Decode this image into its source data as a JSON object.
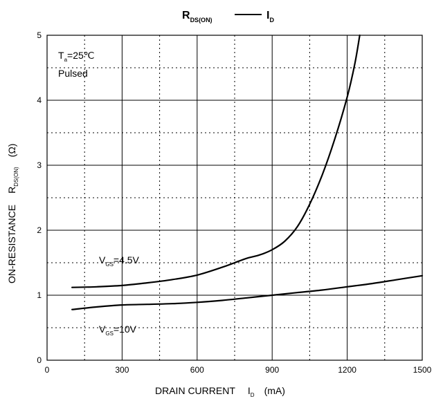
{
  "chart_data": {
    "type": "line",
    "title_main": "R",
    "title_main_sub": "DS(ON)",
    "title_second": "I",
    "title_second_sub": "D",
    "xlabel_main": "DRAIN CURRENT",
    "xlabel_symbol": "I",
    "xlabel_symbol_sub": "D",
    "xlabel_unit": "(mA)",
    "ylabel_main": "ON-RESISTANCE",
    "ylabel_symbol": "R",
    "ylabel_symbol_sub": "DS(ON)",
    "ylabel_unit": "(Ω)",
    "xlim": [
      0,
      1500
    ],
    "ylim": [
      0,
      5
    ],
    "x_ticks": [
      "0",
      "300",
      "600",
      "900",
      "1200",
      "1500"
    ],
    "y_ticks": [
      "0",
      "1",
      "2",
      "3",
      "4",
      "5"
    ],
    "grid": true,
    "condition_ta": "T",
    "condition_ta_sub": "a",
    "condition_ta_value": "=25℃",
    "condition_mode": "Pulsed",
    "series": [
      {
        "name_main": "V",
        "name_sub": "GS",
        "name_value": "=4.5V",
        "x": [
          100,
          200,
          300,
          400,
          500,
          600,
          700,
          750,
          800,
          850,
          900,
          950,
          1000,
          1050,
          1100,
          1150,
          1200,
          1230,
          1250
        ],
        "y": [
          1.12,
          1.13,
          1.15,
          1.19,
          1.24,
          1.31,
          1.43,
          1.5,
          1.57,
          1.62,
          1.7,
          1.83,
          2.05,
          2.4,
          2.85,
          3.4,
          4.05,
          4.55,
          5.0
        ]
      },
      {
        "name_main": "V",
        "name_sub": "GS",
        "name_value": "=10V",
        "x": [
          100,
          200,
          300,
          400,
          500,
          600,
          700,
          800,
          900,
          1000,
          1100,
          1200,
          1300,
          1400,
          1500
        ],
        "y": [
          0.78,
          0.82,
          0.85,
          0.86,
          0.87,
          0.89,
          0.92,
          0.96,
          1.0,
          1.04,
          1.08,
          1.13,
          1.18,
          1.24,
          1.3
        ]
      }
    ]
  }
}
